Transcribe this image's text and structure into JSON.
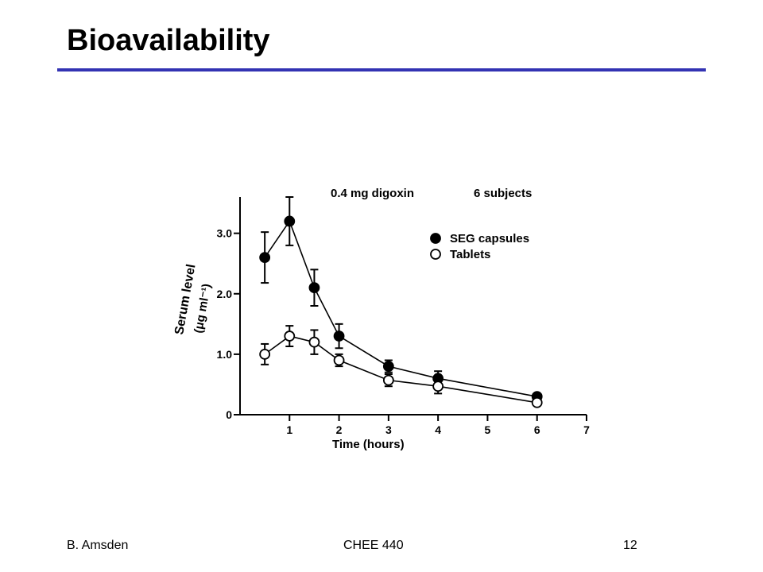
{
  "slide": {
    "title": "Bioavailability",
    "rule_color": "#3333b3"
  },
  "footer": {
    "left": "B. Amsden",
    "center": "CHEE 440",
    "right": "12"
  },
  "chart_data": {
    "type": "line",
    "title": "0.4 mg digoxin",
    "subtitle": "6 subjects",
    "xlabel": "Time (hours)",
    "ylabel_line1": "Serum level",
    "ylabel_line2": "(μg ml⁻¹)",
    "xlim": [
      0,
      7
    ],
    "ylim": [
      0,
      3.6
    ],
    "x_ticks": [
      1,
      2,
      3,
      4,
      5,
      6,
      7
    ],
    "x_tick_labels": [
      "1",
      "2",
      "3",
      "4",
      "5",
      "6",
      "7"
    ],
    "y_ticks": [
      0,
      1.0,
      2.0,
      3.0
    ],
    "y_tick_labels": [
      "0",
      "1.0",
      "2.0",
      "3.0"
    ],
    "legend_position": "top-right",
    "series": [
      {
        "name": "SEG capsules",
        "marker": "filled-circle",
        "x": [
          0.5,
          1,
          1.5,
          2,
          3,
          4,
          6
        ],
        "y": [
          2.6,
          3.2,
          2.1,
          1.3,
          0.8,
          0.6,
          0.3
        ],
        "err": [
          0.42,
          0.4,
          0.3,
          0.2,
          0.1,
          0.12,
          0
        ]
      },
      {
        "name": "Tablets",
        "marker": "open-circle",
        "x": [
          0.5,
          1,
          1.5,
          2,
          3,
          4,
          6
        ],
        "y": [
          1.0,
          1.3,
          1.2,
          0.9,
          0.57,
          0.47,
          0.2
        ],
        "err": [
          0.17,
          0.17,
          0.2,
          0.1,
          0.1,
          0.12,
          0
        ]
      }
    ]
  }
}
